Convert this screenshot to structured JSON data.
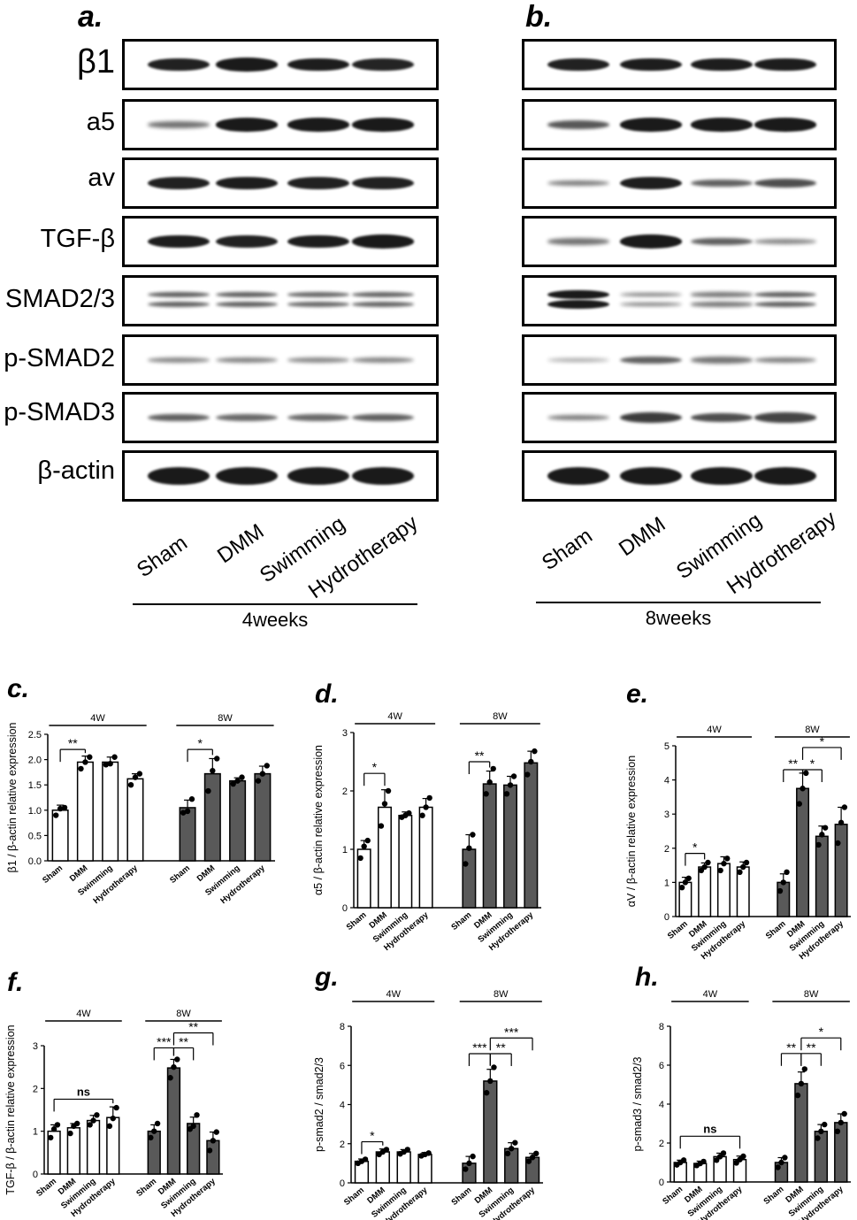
{
  "blots": {
    "panels": [
      {
        "label": "a.",
        "timepoint": "4weeks"
      },
      {
        "label": "b.",
        "timepoint": "8weeks"
      }
    ],
    "rows": [
      "β1",
      "a5",
      "av",
      "TGF-β",
      "SMAD2/3",
      "p-SMAD2",
      "p-SMAD3",
      "β-actin"
    ],
    "lanes": [
      "Sham",
      "DMM",
      "Swimming",
      "Hydrotherapy"
    ],
    "band_intensity_4w": [
      [
        0.9,
        0.95,
        0.92,
        0.88
      ],
      [
        0.45,
        0.95,
        0.95,
        0.95
      ],
      [
        0.9,
        0.92,
        0.9,
        0.9
      ],
      [
        0.92,
        0.9,
        0.92,
        0.95
      ],
      [
        0.55,
        0.55,
        0.5,
        0.52
      ],
      [
        0.35,
        0.38,
        0.35,
        0.38
      ],
      [
        0.55,
        0.5,
        0.5,
        0.55
      ],
      [
        1.0,
        1.0,
        1.0,
        1.0
      ]
    ],
    "band_intensity_8w": [
      [
        0.9,
        0.92,
        0.92,
        0.92
      ],
      [
        0.6,
        0.95,
        0.95,
        0.95
      ],
      [
        0.4,
        0.92,
        0.55,
        0.65
      ],
      [
        0.45,
        0.95,
        0.55,
        0.35
      ],
      [
        0.95,
        0.4,
        0.45,
        0.55
      ],
      [
        0.2,
        0.55,
        0.45,
        0.4
      ],
      [
        0.4,
        0.75,
        0.65,
        0.7
      ],
      [
        1.0,
        1.0,
        1.0,
        1.0
      ]
    ]
  },
  "chart_data": [
    {
      "type": "bar",
      "panel": "c.",
      "ylabel": "β1 / β-actin relative expression",
      "ylim": [
        0,
        2.5
      ],
      "yticks": [
        "0.0",
        "0.5",
        "1.0",
        "1.5",
        "2.0",
        "2.5"
      ],
      "groups": [
        "4W",
        "8W"
      ],
      "categories": [
        "Sham",
        "DMM",
        "Swimming",
        "Hydrotherapy"
      ],
      "series": [
        {
          "group": "4W",
          "values": [
            1.0,
            1.95,
            1.95,
            1.62
          ],
          "errors": [
            0.1,
            0.12,
            0.1,
            0.1
          ],
          "points": [
            [
              0.9,
              1.03,
              1.05
            ],
            [
              1.82,
              1.95,
              2.05
            ],
            [
              1.9,
              1.92,
              2.05
            ],
            [
              1.5,
              1.65,
              1.72
            ]
          ]
        },
        {
          "group": "8W",
          "values": [
            1.05,
            1.72,
            1.58,
            1.72
          ],
          "errors": [
            0.15,
            0.3,
            0.06,
            0.15
          ],
          "points": [
            [
              0.95,
              0.98,
              1.22
            ],
            [
              1.38,
              1.78,
              2.02
            ],
            [
              1.52,
              1.58,
              1.65
            ],
            [
              1.58,
              1.72,
              1.88
            ]
          ]
        }
      ],
      "annotations": [
        {
          "text": "**",
          "group": "4W",
          "from": 0,
          "to": 1,
          "level": 2.2
        },
        {
          "text": "*",
          "group": "8W",
          "from": 0,
          "to": 1,
          "level": 2.2
        }
      ]
    },
    {
      "type": "bar",
      "panel": "d.",
      "ylabel": "α5 / β-actin relative expression",
      "ylim": [
        0,
        3
      ],
      "yticks": [
        "0",
        "1",
        "2",
        "3"
      ],
      "groups": [
        "4W",
        "8W"
      ],
      "categories": [
        "Sham",
        "DMM",
        "Swimming",
        "Hydrotherapy"
      ],
      "series": [
        {
          "group": "4W",
          "values": [
            1.0,
            1.72,
            1.58,
            1.72
          ],
          "errors": [
            0.15,
            0.3,
            0.06,
            0.15
          ],
          "points": [
            [
              0.85,
              1.05,
              1.15
            ],
            [
              1.4,
              1.78,
              2.0
            ],
            [
              1.55,
              1.58,
              1.62
            ],
            [
              1.58,
              1.72,
              1.88
            ]
          ]
        },
        {
          "group": "8W",
          "values": [
            1.0,
            2.12,
            2.1,
            2.48
          ],
          "errors": [
            0.25,
            0.22,
            0.15,
            0.2
          ],
          "points": [
            [
              0.75,
              1.02,
              1.25
            ],
            [
              1.95,
              2.15,
              2.38
            ],
            [
              1.95,
              2.1,
              2.25
            ],
            [
              2.28,
              2.5,
              2.68
            ]
          ]
        }
      ],
      "annotations": [
        {
          "text": "*",
          "group": "4W",
          "from": 0,
          "to": 1,
          "level": 2.3
        },
        {
          "text": "**",
          "group": "8W",
          "from": 0,
          "to": 1,
          "level": 2.5
        }
      ]
    },
    {
      "type": "bar",
      "panel": "e.",
      "ylabel": "αV / β-actin relative expression",
      "ylim": [
        0,
        5
      ],
      "yticks": [
        "0",
        "1",
        "2",
        "3",
        "4",
        "5"
      ],
      "groups": [
        "4W",
        "8W"
      ],
      "categories": [
        "Sham",
        "DMM",
        "Swimming",
        "Hydrotherapy"
      ],
      "series": [
        {
          "group": "4W",
          "values": [
            1.0,
            1.45,
            1.55,
            1.45
          ],
          "errors": [
            0.15,
            0.12,
            0.2,
            0.15
          ],
          "points": [
            [
              0.85,
              1.0,
              1.12
            ],
            [
              1.35,
              1.45,
              1.58
            ],
            [
              1.35,
              1.55,
              1.7
            ],
            [
              1.3,
              1.45,
              1.58
            ]
          ]
        },
        {
          "group": "8W",
          "values": [
            1.0,
            3.75,
            2.35,
            2.7
          ],
          "errors": [
            0.25,
            0.45,
            0.3,
            0.5
          ],
          "points": [
            [
              0.75,
              1.0,
              1.3
            ],
            [
              3.3,
              3.75,
              4.2
            ],
            [
              2.1,
              2.4,
              2.6
            ],
            [
              2.15,
              2.75,
              3.2
            ]
          ]
        }
      ],
      "annotations": [
        {
          "text": "*",
          "group": "4W",
          "from": 0,
          "to": 1,
          "level": 1.85
        },
        {
          "text": "**",
          "group": "8W",
          "from": 0,
          "to": 1,
          "level": 4.3
        },
        {
          "text": "*",
          "group": "8W",
          "from": 1,
          "to": 2,
          "level": 4.3
        },
        {
          "text": "*",
          "group": "8W",
          "from": 1,
          "to": 3,
          "level": 4.95
        }
      ]
    },
    {
      "type": "bar",
      "panel": "f.",
      "ylabel": "TGF-β / β-actin relative expression",
      "ylim": [
        0,
        3
      ],
      "yticks": [
        "0",
        "1",
        "2",
        "3"
      ],
      "groups": [
        "4W",
        "8W"
      ],
      "categories": [
        "Sham",
        "DMM",
        "Swimming",
        "Hydrotherapy"
      ],
      "series": [
        {
          "group": "4W",
          "values": [
            1.0,
            1.08,
            1.25,
            1.32
          ],
          "errors": [
            0.15,
            0.1,
            0.12,
            0.25
          ],
          "points": [
            [
              0.85,
              1.05,
              1.15
            ],
            [
              0.95,
              1.12,
              1.18
            ],
            [
              1.15,
              1.25,
              1.38
            ],
            [
              1.12,
              1.3,
              1.55
            ]
          ]
        },
        {
          "group": "8W",
          "values": [
            1.0,
            2.48,
            1.18,
            0.78
          ],
          "errors": [
            0.15,
            0.2,
            0.15,
            0.2
          ],
          "points": [
            [
              0.85,
              1.0,
              1.18
            ],
            [
              2.25,
              2.5,
              2.68
            ],
            [
              1.05,
              1.12,
              1.38
            ],
            [
              0.55,
              0.78,
              0.98
            ]
          ]
        }
      ],
      "annotations": [
        {
          "text": "ns",
          "group": "4W",
          "from": 0,
          "to": 3,
          "level": 1.75
        },
        {
          "text": "***",
          "group": "8W",
          "from": 0,
          "to": 1,
          "level": 2.95
        },
        {
          "text": "**",
          "group": "8W",
          "from": 1,
          "to": 2,
          "level": 2.95
        },
        {
          "text": "**",
          "group": "8W",
          "from": 1,
          "to": 3,
          "level": 3.3
        }
      ]
    },
    {
      "type": "bar",
      "panel": "g.",
      "ylabel": "p-smad2 / smad2/3",
      "ylim": [
        0,
        8
      ],
      "yticks": [
        "0",
        "2",
        "4",
        "6",
        "8"
      ],
      "groups": [
        "4W",
        "8W"
      ],
      "categories": [
        "Sham",
        "DMM",
        "Swimming",
        "Hydrotherapy"
      ],
      "series": [
        {
          "group": "4W",
          "values": [
            1.1,
            1.58,
            1.58,
            1.45
          ],
          "errors": [
            0.12,
            0.15,
            0.12,
            0.1
          ],
          "points": [
            [
              1.0,
              1.1,
              1.2
            ],
            [
              1.45,
              1.58,
              1.7
            ],
            [
              1.48,
              1.58,
              1.7
            ],
            [
              1.38,
              1.45,
              1.52
            ]
          ]
        },
        {
          "group": "8W",
          "values": [
            1.0,
            5.2,
            1.75,
            1.3
          ],
          "errors": [
            0.35,
            0.6,
            0.3,
            0.2
          ],
          "points": [
            [
              0.7,
              1.0,
              1.35
            ],
            [
              4.6,
              5.2,
              5.9
            ],
            [
              1.5,
              1.75,
              2.05
            ],
            [
              1.1,
              1.3,
              1.5
            ]
          ]
        }
      ],
      "annotations": [
        {
          "text": "*",
          "group": "4W",
          "from": 0,
          "to": 1,
          "level": 2.1
        },
        {
          "text": "***",
          "group": "8W",
          "from": 0,
          "to": 1,
          "level": 6.6
        },
        {
          "text": "**",
          "group": "8W",
          "from": 1,
          "to": 2,
          "level": 6.6
        },
        {
          "text": "***",
          "group": "8W",
          "from": 1,
          "to": 3,
          "level": 7.4
        }
      ]
    },
    {
      "type": "bar",
      "panel": "h.",
      "ylabel": "p-smad3 / smad2/3",
      "ylim": [
        0,
        8
      ],
      "yticks": [
        "0",
        "2",
        "4",
        "6",
        "8"
      ],
      "groups": [
        "4W",
        "8W"
      ],
      "categories": [
        "Sham",
        "DMM",
        "Swimming",
        "Hydrotherapy"
      ],
      "series": [
        {
          "group": "4W",
          "values": [
            1.0,
            0.95,
            1.3,
            1.15
          ],
          "errors": [
            0.12,
            0.12,
            0.18,
            0.18
          ],
          "points": [
            [
              0.88,
              1.0,
              1.12
            ],
            [
              0.85,
              0.95,
              1.05
            ],
            [
              1.12,
              1.3,
              1.48
            ],
            [
              0.98,
              1.15,
              1.32
            ]
          ]
        },
        {
          "group": "8W",
          "values": [
            1.0,
            5.05,
            2.6,
            3.05
          ],
          "errors": [
            0.25,
            0.6,
            0.35,
            0.45
          ],
          "points": [
            [
              0.75,
              1.0,
              1.25
            ],
            [
              4.45,
              5.05,
              5.8
            ],
            [
              2.25,
              2.6,
              2.95
            ],
            [
              2.6,
              3.05,
              3.5
            ]
          ]
        }
      ],
      "annotations": [
        {
          "text": "ns",
          "group": "4W",
          "from": 0,
          "to": 3,
          "level": 2.35
        },
        {
          "text": "**",
          "group": "8W",
          "from": 0,
          "to": 1,
          "level": 6.6
        },
        {
          "text": "**",
          "group": "8W",
          "from": 1,
          "to": 2,
          "level": 6.6
        },
        {
          "text": "*",
          "group": "8W",
          "from": 1,
          "to": 3,
          "level": 7.4
        }
      ]
    }
  ],
  "colors": {
    "group_4w_fill": "#ffffff",
    "group_8w_fill": "#595959",
    "ink": "#000000"
  }
}
